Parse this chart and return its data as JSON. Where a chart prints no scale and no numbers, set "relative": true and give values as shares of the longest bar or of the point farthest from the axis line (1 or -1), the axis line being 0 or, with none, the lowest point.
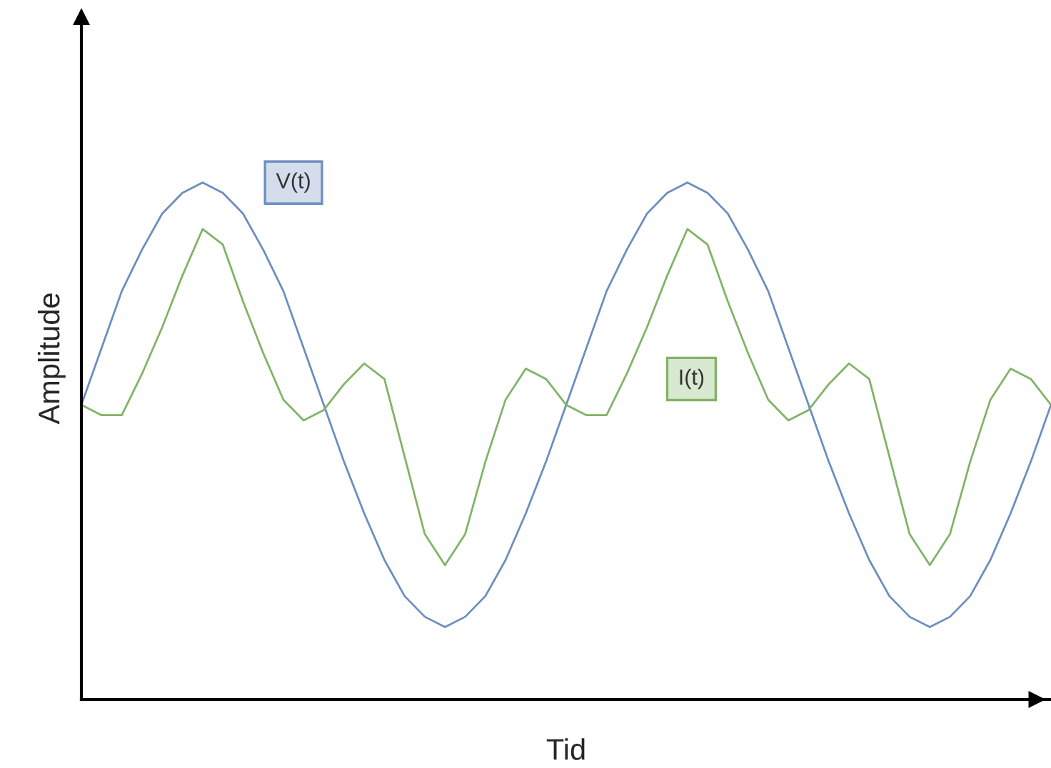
{
  "chart_data": {
    "type": "line",
    "relative": true,
    "xlabel": "Tid",
    "ylabel": "Amplitude",
    "legend": false,
    "grid": false,
    "categories": [
      null,
      null,
      null,
      null,
      null,
      null,
      null,
      null,
      null,
      null,
      null,
      null,
      null,
      null,
      null,
      null,
      null,
      null,
      null,
      null,
      null,
      null,
      null,
      null,
      null,
      null,
      null,
      null,
      null,
      null,
      null,
      null,
      null,
      null,
      null,
      null,
      null,
      null,
      null,
      null,
      null,
      null,
      null,
      null,
      null,
      null,
      null,
      null,
      null
    ],
    "series": [
      {
        "name": "V(t)",
        "color": "#6c8ebf",
        "values": [
          0.57,
          0.68,
          0.79,
          0.87,
          0.94,
          0.98,
          1,
          0.98,
          0.94,
          0.87,
          0.79,
          0.68,
          0.57,
          0.46,
          0.36,
          0.27,
          0.2,
          0.16,
          0.14,
          0.16,
          0.2,
          0.27,
          0.36,
          0.46,
          0.57,
          0.68,
          0.79,
          0.87,
          0.94,
          0.98,
          1,
          0.98,
          0.94,
          0.87,
          0.79,
          0.68,
          0.57,
          0.46,
          0.36,
          0.27,
          0.2,
          0.16,
          0.14,
          0.16,
          0.2,
          0.27,
          0.36,
          0.46,
          0.57
        ]
      },
      {
        "name": "I(t)",
        "color": "#82b366",
        "values": [
          0.57,
          0.55,
          0.55,
          0.63,
          0.72,
          0.82,
          0.91,
          0.88,
          0.77,
          0.67,
          0.58,
          0.54,
          0.56,
          0.61,
          0.65,
          0.62,
          0.47,
          0.32,
          0.26,
          0.32,
          0.46,
          0.58,
          0.64,
          0.62,
          0.57,
          0.55,
          0.55,
          0.63,
          0.72,
          0.82,
          0.91,
          0.88,
          0.77,
          0.67,
          0.58,
          0.54,
          0.56,
          0.61,
          0.65,
          0.62,
          0.47,
          0.32,
          0.26,
          0.32,
          0.46,
          0.58,
          0.64,
          0.62,
          0.57
        ]
      }
    ]
  }
}
